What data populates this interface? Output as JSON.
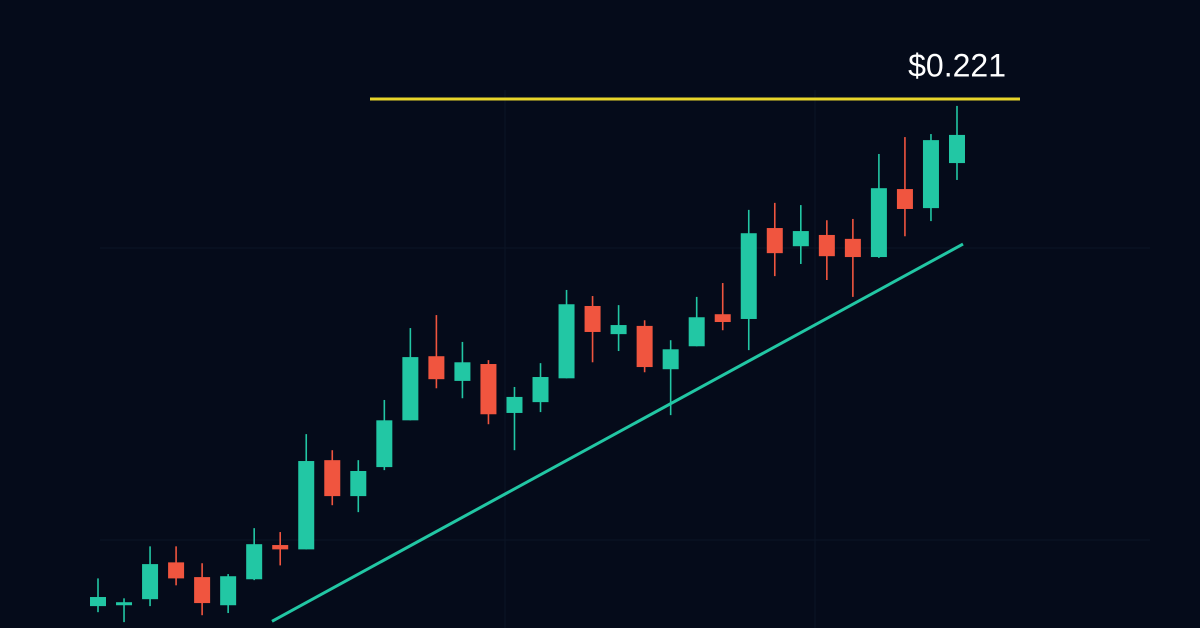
{
  "chart_data": {
    "type": "candlestick",
    "up_color": "#22c7a4",
    "down_color": "#f0553f",
    "open": [
      0.1039,
      0.1041,
      0.1055,
      0.114,
      0.1106,
      0.1041,
      0.1101,
      0.118,
      0.117,
      0.1376,
      0.1293,
      0.136,
      0.1468,
      0.1616,
      0.1559,
      0.1598,
      0.1485,
      0.151,
      0.1565,
      0.1732,
      0.1667,
      0.1686,
      0.1586,
      0.1639,
      0.1713,
      0.1702,
      0.1912,
      0.187,
      0.1896,
      0.1887,
      0.1845,
      0.2002,
      0.1958,
      0.2062
    ],
    "high": [
      0.1103,
      0.1057,
      0.1177,
      0.1177,
      0.1138,
      0.1113,
      0.1219,
      0.121,
      0.1436,
      0.1399,
      0.1376,
      0.1515,
      0.1681,
      0.1711,
      0.1649,
      0.1607,
      0.1545,
      0.16,
      0.1769,
      0.1755,
      0.1734,
      0.1699,
      0.1653,
      0.1753,
      0.1785,
      0.1954,
      0.197,
      0.1965,
      0.193,
      0.1933,
      0.2083,
      0.2122,
      0.2129,
      0.2194
    ],
    "low": [
      0.1025,
      0.1002,
      0.1039,
      0.1087,
      0.1018,
      0.1023,
      0.1099,
      0.1133,
      0.117,
      0.1272,
      0.1256,
      0.1353,
      0.1468,
      0.1542,
      0.1519,
      0.1459,
      0.1399,
      0.1487,
      0.1565,
      0.1602,
      0.1628,
      0.1579,
      0.148,
      0.1639,
      0.1676,
      0.163,
      0.1801,
      0.1829,
      0.1792,
      0.1753,
      0.1843,
      0.1893,
      0.1928,
      0.2023
    ],
    "close": [
      0.106,
      0.1048,
      0.1136,
      0.1103,
      0.1046,
      0.1108,
      0.1182,
      0.117,
      0.1374,
      0.1293,
      0.1351,
      0.1468,
      0.1614,
      0.1563,
      0.1602,
      0.1482,
      0.1522,
      0.1568,
      0.1736,
      0.1672,
      0.1688,
      0.1591,
      0.1632,
      0.1706,
      0.1695,
      0.19,
      0.1854,
      0.1905,
      0.1847,
      0.1845,
      0.2004,
      0.1956,
      0.2115,
      0.2127
    ],
    "ylim": [
      0.1,
      0.23
    ],
    "resistance": {
      "value": 0.221,
      "label": "$0.221",
      "color": "#e8d52a"
    },
    "support": {
      "values": [
        0.1004,
        0.1875
      ],
      "color": "#22c7a4"
    }
  }
}
